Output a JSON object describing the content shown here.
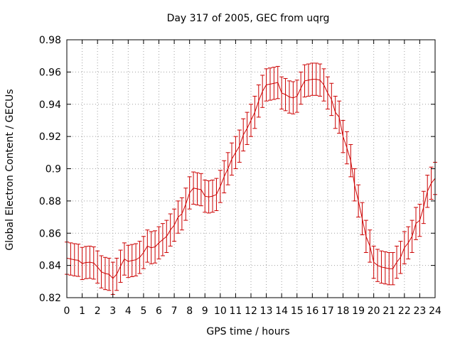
{
  "chart_data": {
    "type": "line",
    "title": "Day 317 of 2005, GEC from uqrg",
    "xlabel": "GPS time / hours",
    "ylabel": "Global Electron Content / GECUs",
    "xlim": [
      0,
      24
    ],
    "ylim": [
      0.82,
      0.98
    ],
    "x_ticks": [
      "0",
      "1",
      "2",
      "3",
      "4",
      "5",
      "6",
      "7",
      "8",
      "9",
      "10",
      "11",
      "12",
      "13",
      "14",
      "15",
      "16",
      "17",
      "18",
      "19",
      "20",
      "21",
      "22",
      "23",
      "24"
    ],
    "y_ticks": [
      "0.82",
      "0.84",
      "0.86",
      "0.88",
      "0.9",
      "0.92",
      "0.94",
      "0.96",
      "0.98"
    ],
    "grid": true,
    "series_color": "#cc0000",
    "series": [
      {
        "name": "GEC",
        "x": [
          0,
          0.25,
          0.5,
          0.75,
          1,
          1.25,
          1.5,
          1.75,
          2,
          2.25,
          2.5,
          2.75,
          3,
          3.25,
          3.5,
          3.75,
          4,
          4.25,
          4.5,
          4.75,
          5,
          5.25,
          5.5,
          5.75,
          6,
          6.25,
          6.5,
          6.75,
          7,
          7.25,
          7.5,
          7.75,
          8,
          8.25,
          8.5,
          8.75,
          9,
          9.25,
          9.5,
          9.75,
          10,
          10.25,
          10.5,
          10.75,
          11,
          11.25,
          11.5,
          11.75,
          12,
          12.25,
          12.5,
          12.75,
          13,
          13.25,
          13.5,
          13.75,
          14,
          14.25,
          14.5,
          14.75,
          15,
          15.25,
          15.5,
          15.75,
          16,
          16.25,
          16.5,
          16.75,
          17,
          17.25,
          17.5,
          17.75,
          18,
          18.25,
          18.5,
          18.75,
          19,
          19.25,
          19.5,
          19.75,
          20,
          20.25,
          20.5,
          20.75,
          21,
          21.25,
          21.5,
          21.75,
          22,
          22.25,
          22.5,
          22.75,
          23,
          23.25,
          23.5,
          23.75,
          24
        ],
        "values": [
          0.8445,
          0.844,
          0.8435,
          0.8432,
          0.8412,
          0.8418,
          0.842,
          0.8415,
          0.839,
          0.836,
          0.835,
          0.8345,
          0.832,
          0.8345,
          0.8395,
          0.844,
          0.8425,
          0.843,
          0.8435,
          0.845,
          0.848,
          0.852,
          0.851,
          0.8515,
          0.854,
          0.856,
          0.858,
          0.862,
          0.865,
          0.87,
          0.872,
          0.878,
          0.885,
          0.888,
          0.8875,
          0.887,
          0.883,
          0.8825,
          0.883,
          0.884,
          0.889,
          0.895,
          0.9,
          0.906,
          0.91,
          0.914,
          0.921,
          0.925,
          0.93,
          0.935,
          0.942,
          0.948,
          0.952,
          0.9525,
          0.953,
          0.9535,
          0.947,
          0.946,
          0.9445,
          0.944,
          0.945,
          0.95,
          0.9545,
          0.955,
          0.9555,
          0.9555,
          0.955,
          0.952,
          0.947,
          0.943,
          0.935,
          0.932,
          0.92,
          0.913,
          0.905,
          0.89,
          0.88,
          0.869,
          0.858,
          0.852,
          0.842,
          0.84,
          0.839,
          0.8385,
          0.838,
          0.838,
          0.842,
          0.845,
          0.851,
          0.854,
          0.858,
          0.866,
          0.868,
          0.876,
          0.886,
          0.891,
          0.894
        ],
        "error": 0.01
      }
    ]
  }
}
